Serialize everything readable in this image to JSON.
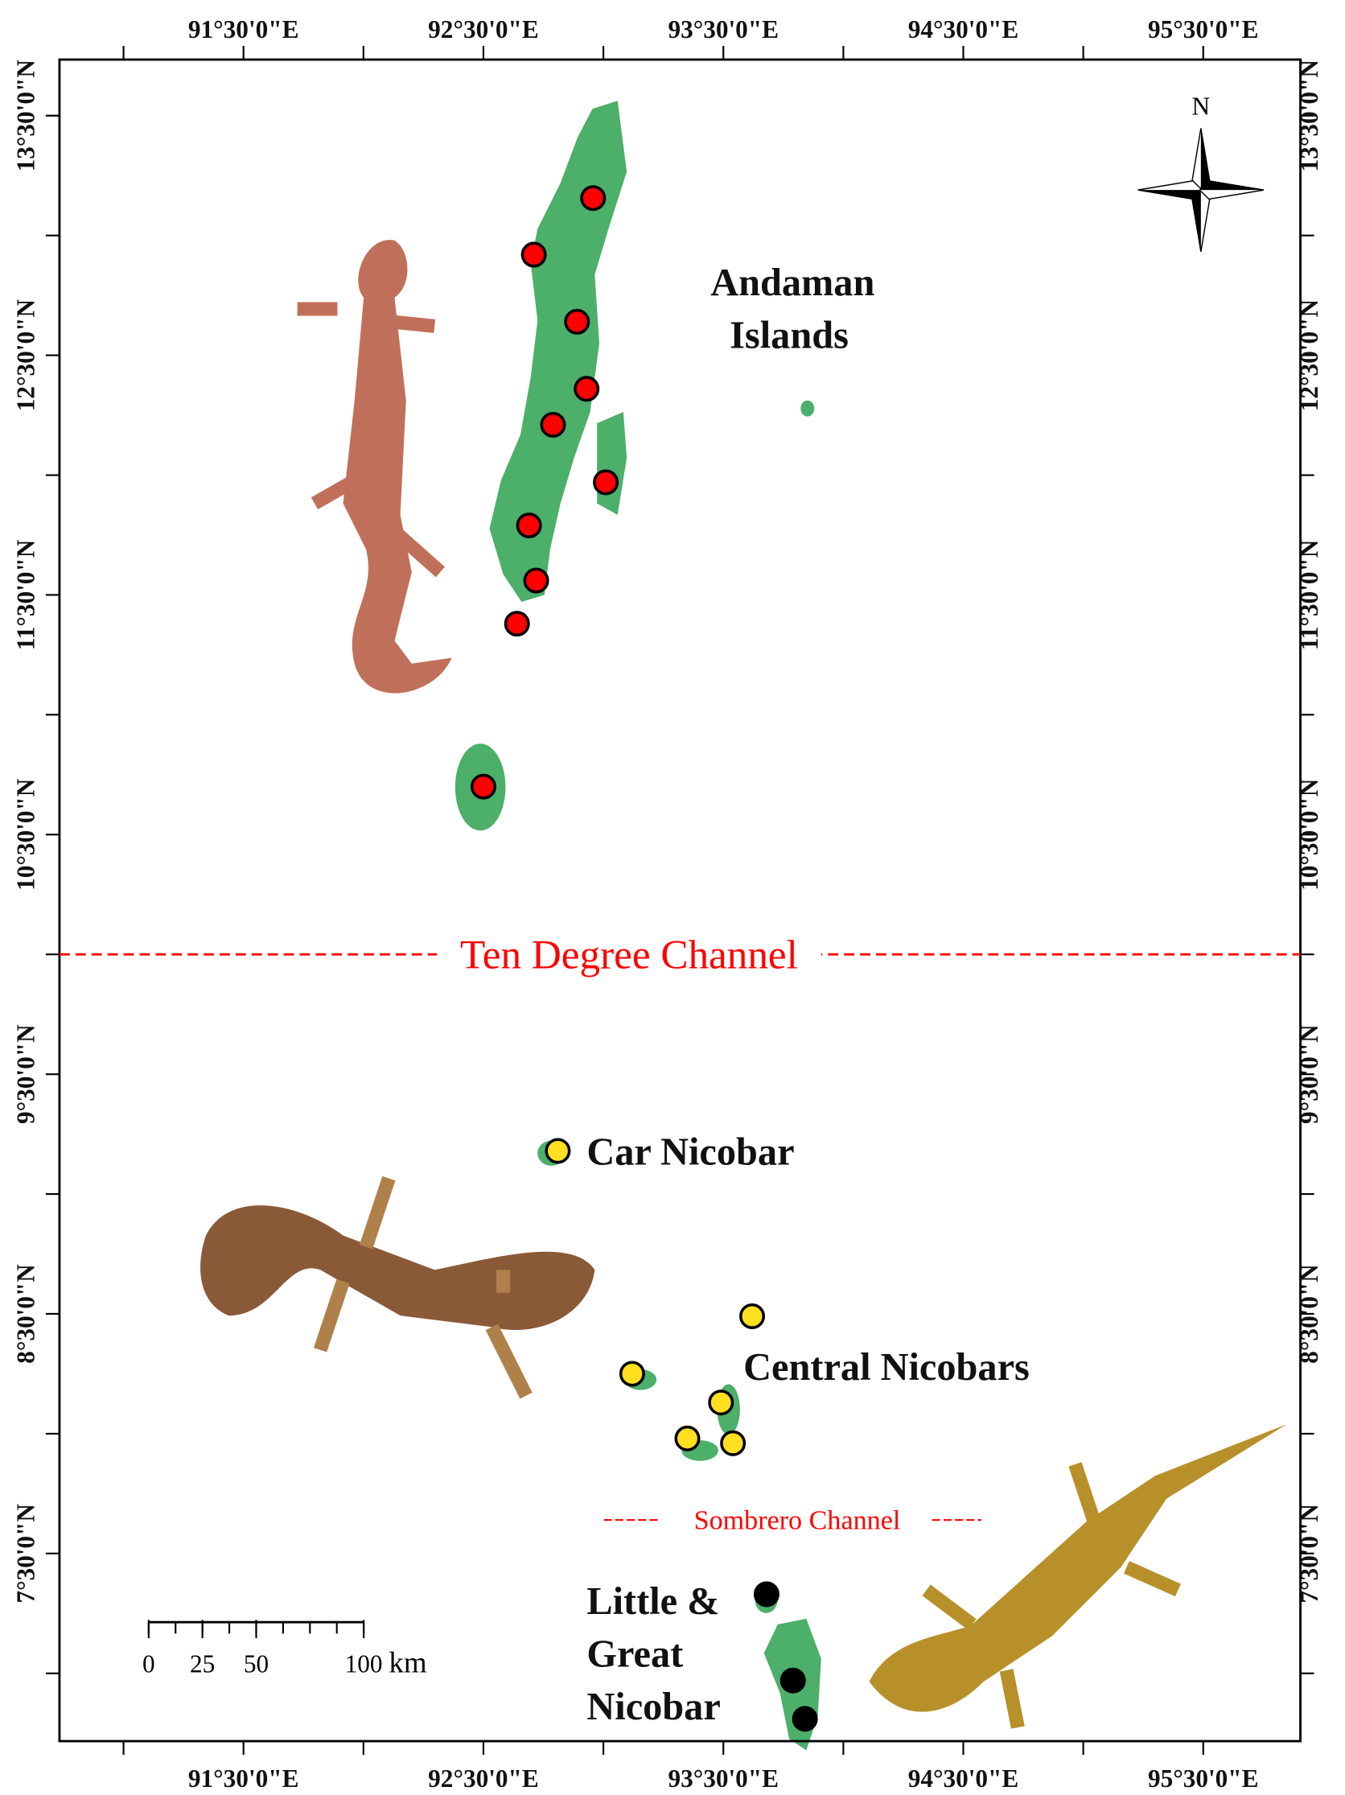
{
  "map": {
    "lonlim": [
      90.733,
      95.905
    ],
    "latlim": [
      6.717,
      13.734
    ],
    "lon_ticks": [
      {
        "value": 91.5,
        "label": "91°30'0\"E"
      },
      {
        "value": 92.5,
        "label": "92°30'0\"E"
      },
      {
        "value": 93.5,
        "label": "93°30'0\"E"
      },
      {
        "value": 94.5,
        "label": "94°30'0\"E"
      },
      {
        "value": 95.5,
        "label": "95°30'0\"E"
      }
    ],
    "lon_minor_ticks": [
      91,
      92,
      93,
      94,
      95
    ],
    "lat_ticks": [
      {
        "value": 13.5,
        "label": "13°30'0\"N"
      },
      {
        "value": 12.5,
        "label": "12°30'0\"N"
      },
      {
        "value": 11.5,
        "label": "11°30'0\"N"
      },
      {
        "value": 10.5,
        "label": "10°30'0\"N"
      },
      {
        "value": 9.5,
        "label": "9°30'0\"N"
      },
      {
        "value": 8.5,
        "label": "8°30'0\"N"
      },
      {
        "value": 7.5,
        "label": "7°30'0\"N"
      }
    ],
    "lat_minor_ticks": [
      13,
      12,
      11,
      10,
      9,
      8,
      7
    ],
    "regions": {
      "andaman": [
        "Andaman",
        "Islands"
      ],
      "car_nicobar": "Car Nicobar",
      "central_nicobars": "Central Nicobars",
      "great_nicobar": [
        "Little &",
        "Great",
        "Nicobar"
      ]
    },
    "channels": [
      {
        "label": "Ten Degree Channel",
        "lat": 10.0,
        "color": "#ff0000"
      },
      {
        "label": "Sombrero Channel",
        "lat": 7.64,
        "color": "#ff0000"
      }
    ],
    "north": "N",
    "scale_bar": {
      "ticks": [
        0,
        25,
        50,
        100
      ],
      "unit": "km"
    },
    "series": [
      {
        "color": "#ff0000",
        "points": [
          [
            92.957,
            13.156
          ],
          [
            92.71,
            12.92
          ],
          [
            92.89,
            12.64
          ],
          [
            92.93,
            12.36
          ],
          [
            92.79,
            12.21
          ],
          [
            93.01,
            11.97
          ],
          [
            92.69,
            11.79
          ],
          [
            92.72,
            11.56
          ],
          [
            92.64,
            11.38
          ],
          [
            92.5,
            10.7
          ]
        ]
      },
      {
        "color": "#ffe020",
        "points": [
          [
            92.81,
            9.18
          ],
          [
            93.62,
            8.49
          ],
          [
            93.12,
            8.25
          ],
          [
            93.49,
            8.13
          ],
          [
            93.35,
            7.98
          ],
          [
            93.54,
            7.96
          ]
        ]
      },
      {
        "color": "#000000",
        "points": [
          [
            93.68,
            7.33
          ],
          [
            93.79,
            6.97
          ],
          [
            93.84,
            6.81
          ]
        ]
      }
    ]
  }
}
